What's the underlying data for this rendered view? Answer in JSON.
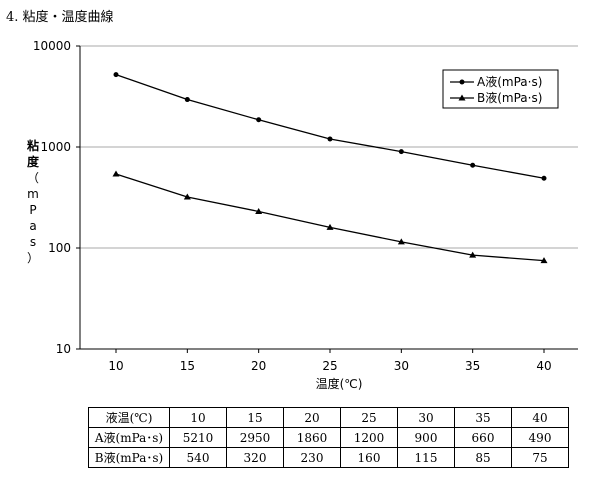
{
  "section_title": "4. 粘度・温度曲線",
  "chart_data": {
    "type": "line",
    "x": [
      10,
      15,
      20,
      25,
      30,
      35,
      40
    ],
    "xlim": [
      10,
      40
    ],
    "xlabel": "温度(℃)",
    "ylabel": "粘度（mPas）",
    "ylabel_chars": [
      "粘",
      "度",
      "（",
      "m",
      "P",
      "a",
      "s",
      "）"
    ],
    "yscale": "log",
    "ylim": [
      10,
      10000
    ],
    "y_ticks": [
      "10",
      "100",
      "1000",
      "10000"
    ],
    "x_ticks": [
      "10",
      "15",
      "20",
      "25",
      "30",
      "35",
      "40"
    ],
    "grid": "horizontal",
    "legend_position": "top-right",
    "line_color": "#000000",
    "series": [
      {
        "name": "A液(mPa·s)",
        "marker": "circle",
        "values": [
          5210,
          2950,
          1860,
          1200,
          900,
          660,
          490
        ]
      },
      {
        "name": "B液(mPa·s)",
        "marker": "triangle",
        "values": [
          540,
          320,
          230,
          160,
          115,
          85,
          75
        ]
      }
    ]
  },
  "table": {
    "header_label": "液温(℃)",
    "temperatures": [
      "10",
      "15",
      "20",
      "25",
      "30",
      "35",
      "40"
    ],
    "rows": [
      {
        "label": "A液(mPa･s)",
        "values": [
          "5210",
          "2950",
          "1860",
          "1200",
          "900",
          "660",
          "490"
        ]
      },
      {
        "label": "B液(mPa･s)",
        "values": [
          "540",
          "320",
          "230",
          "160",
          "115",
          "85",
          "75"
        ]
      }
    ]
  }
}
